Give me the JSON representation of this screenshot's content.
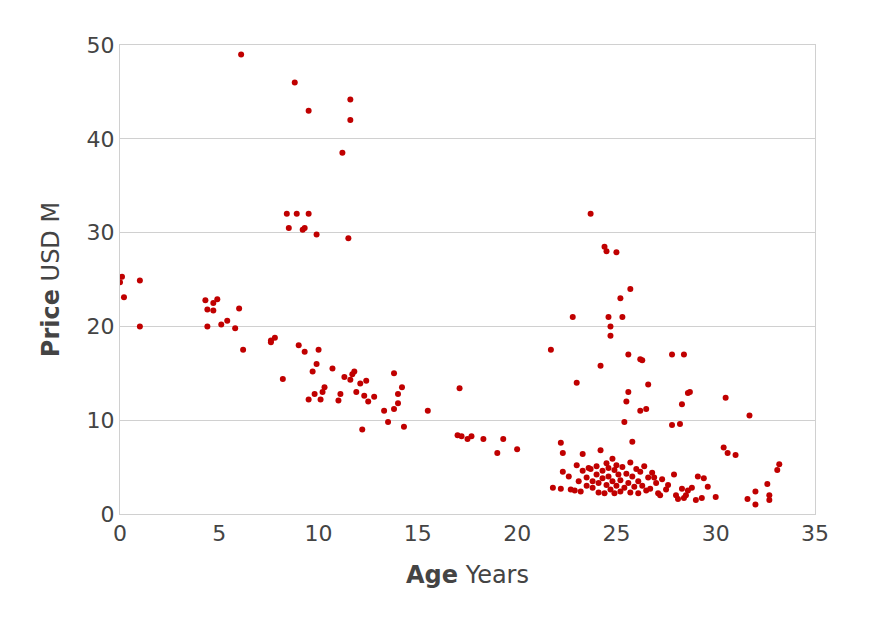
{
  "chart_data": {
    "type": "scatter",
    "xlabel": "Age Years",
    "ylabel": "Price USD M",
    "color": "#c00000",
    "marker": "circle",
    "grid": true,
    "xlim": [
      0,
      35
    ],
    "xticks": [
      0,
      5,
      10,
      15,
      20,
      25,
      30,
      35
    ],
    "ylim": [
      0,
      50
    ],
    "yticks": [
      0,
      10,
      20,
      30,
      40,
      50
    ],
    "x": [
      0,
      0.1,
      0.2,
      1.0,
      1.0,
      4.3,
      4.4,
      4.7,
      4.9,
      4.7,
      4.4,
      5.1,
      5.4,
      5.8,
      6.0,
      6.2,
      6.1,
      7.6,
      7.8,
      7.6,
      8.2,
      8.4,
      8.5,
      8.8,
      8.9,
      9.2,
      9.3,
      9.5,
      9.5,
      9.9,
      9.0,
      9.3,
      9.5,
      9.8,
      9.7,
      9.9,
      10.0,
      10.1,
      10.3,
      10.2,
      10.7,
      11.0,
      11.1,
      11.3,
      11.2,
      11.5,
      11.6,
      11.6,
      11.7,
      11.6,
      11.8,
      11.9,
      12.1,
      12.2,
      12.3,
      12.4,
      12.5,
      12.8,
      13.3,
      13.5,
      13.8,
      13.8,
      14.0,
      14.2,
      14.3,
      14.0,
      15.5,
      17.0,
      17.1,
      17.2,
      17.5,
      17.7,
      18.3,
      19.0,
      19.3,
      20.0,
      21.7,
      22.8,
      23.0,
      23.7,
      24.2,
      24.4,
      24.5,
      24.6,
      24.7,
      24.7,
      25.0,
      25.2,
      25.3,
      25.6,
      25.7,
      25.6,
      25.5,
      25.4,
      25.8,
      26.2,
      26.3,
      26.2,
      26.5,
      26.6,
      27.8,
      28.4,
      27.8,
      28.2,
      28.3,
      28.6,
      28.7,
      30.5,
      30.4,
      30.6,
      31.0,
      31.7,
      31.6,
      32.0,
      32.0,
      32.6,
      32.7,
      32.7,
      33.1,
      33.2,
      21.8,
      22.2,
      22.3,
      22.3,
      22.2,
      22.6,
      22.7,
      22.9,
      23.0,
      23.1,
      23.2,
      23.3,
      23.3,
      23.5,
      23.5,
      23.7,
      23.8,
      23.8,
      24.0,
      24.0,
      24.1,
      24.1,
      24.2,
      24.3,
      24.3,
      24.4,
      24.5,
      24.5,
      24.6,
      24.7,
      24.8,
      24.8,
      24.9,
      24.9,
      25.0,
      25.0,
      25.1,
      25.2,
      25.2,
      25.3,
      25.4,
      25.5,
      25.6,
      25.7,
      25.7,
      25.8,
      25.9,
      26.0,
      26.1,
      26.1,
      26.2,
      26.3,
      26.4,
      26.5,
      26.6,
      26.7,
      26.8,
      27.0,
      27.1,
      27.3,
      27.5,
      27.6,
      27.9,
      28.0,
      28.1,
      28.3,
      28.4,
      28.6,
      28.8,
      29.0,
      29.1,
      29.3,
      29.4,
      29.6,
      30.0,
      27.2,
      26.9,
      28.5,
      23.6,
      24.6
    ],
    "values": [
      24.7,
      25.3,
      23.1,
      24.9,
      20.0,
      22.8,
      21.8,
      22.5,
      22.9,
      21.7,
      20.0,
      20.2,
      20.6,
      19.8,
      21.9,
      17.5,
      49.0,
      18.3,
      18.8,
      18.5,
      14.4,
      32.0,
      30.5,
      46.0,
      32.0,
      30.3,
      30.5,
      32.0,
      43.0,
      29.8,
      18.0,
      17.3,
      12.2,
      12.8,
      15.2,
      16.0,
      17.5,
      12.2,
      13.5,
      13.0,
      15.5,
      12.1,
      12.8,
      14.6,
      38.5,
      29.4,
      44.2,
      42.0,
      14.9,
      14.3,
      15.2,
      13.0,
      13.9,
      9.0,
      12.6,
      14.2,
      12.0,
      12.5,
      11.0,
      9.8,
      11.2,
      15.0,
      12.8,
      13.5,
      9.3,
      11.8,
      11.0,
      8.4,
      13.4,
      8.3,
      8.0,
      8.3,
      8.0,
      6.5,
      8.0,
      6.9,
      17.5,
      21.0,
      14.0,
      32.0,
      15.8,
      28.5,
      28.0,
      21.0,
      20.0,
      19.0,
      27.9,
      23.0,
      21.0,
      17.0,
      24.0,
      13.0,
      12.0,
      9.8,
      7.7,
      16.5,
      16.4,
      11.0,
      11.2,
      13.8,
      17.0,
      17.0,
      9.5,
      9.6,
      11.7,
      12.9,
      13.0,
      12.4,
      7.1,
      6.5,
      6.3,
      10.5,
      1.6,
      1.0,
      2.4,
      3.2,
      2.0,
      1.5,
      4.7,
      5.3,
      2.8,
      7.6,
      6.5,
      4.5,
      2.7,
      4.0,
      2.6,
      2.5,
      5.2,
      3.5,
      2.4,
      6.4,
      4.6,
      3.9,
      3.0,
      4.8,
      2.8,
      3.5,
      5.1,
      4.2,
      2.3,
      3.3,
      6.8,
      4.6,
      3.8,
      2.2,
      5.4,
      3.1,
      4.0,
      2.6,
      5.9,
      3.5,
      4.7,
      2.2,
      5.2,
      3.0,
      4.2,
      2.4,
      3.6,
      5.0,
      2.8,
      4.3,
      3.3,
      5.5,
      2.3,
      4.0,
      2.9,
      4.8,
      3.5,
      2.2,
      4.5,
      3.0,
      5.1,
      2.5,
      3.9,
      2.7,
      4.4,
      3.3,
      2.2,
      3.7,
      2.6,
      3.1,
      4.2,
      2.0,
      1.6,
      2.7,
      1.7,
      2.5,
      2.8,
      1.5,
      4.0,
      1.7,
      3.8,
      2.9,
      1.8,
      2.0,
      3.9,
      2.0,
      4.9,
      4.9
    ]
  }
}
